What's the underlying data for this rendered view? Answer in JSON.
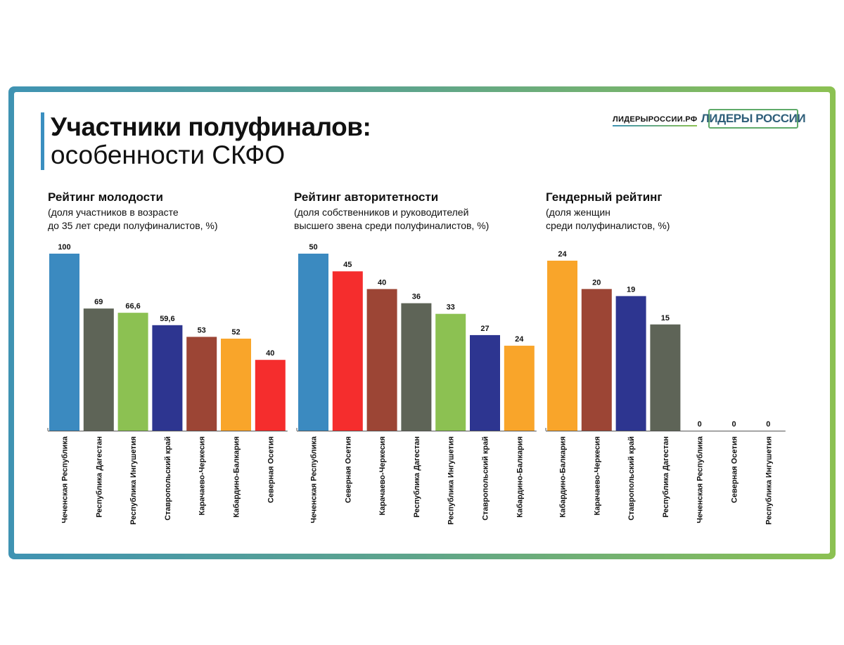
{
  "header": {
    "title_line1": "Участники полуфиналов:",
    "title_line2": "особенности СКФО",
    "site": "ЛИДЕРЫРОССИИ.РФ",
    "logo_text": "ЛИДЕРЫ РОССИИ"
  },
  "region_colors": {
    "Чеченская Республика": "#3b8ac0",
    "Республика Дагестан": "#5e6457",
    "Республика Ингушетия": "#8cc152",
    "Ставропольский край": "#2d3590",
    "Карачаево-Черкесия": "#9c4535",
    "Кабардино-Балкария": "#f9a52a",
    "Северная Осетия": "#f52d2d"
  },
  "chart_data": [
    {
      "type": "bar",
      "title": "Рейтинг молодости",
      "subtitle_line1": "(доля участников в возрасте",
      "subtitle_line2": "до 35 лет среди полуфиналистов, %)",
      "categories": [
        "Чеченская Республика",
        "Республика Дагестан",
        "Республика Ингушетия",
        "Ставропольский край",
        "Карачаево-Черкесия",
        "Кабардино-Балкария",
        "Северная Осетия"
      ],
      "values": [
        100,
        69,
        66.6,
        59.6,
        53,
        52,
        40
      ],
      "value_labels": [
        "100",
        "69",
        "66,6",
        "59,6",
        "53",
        "52",
        "40"
      ],
      "ylim": [
        0,
        100
      ]
    },
    {
      "type": "bar",
      "title": "Рейтинг авторитетности",
      "subtitle_line1": "(доля собственников и руководителей",
      "subtitle_line2": "высшего звена среди полуфиналистов, %)",
      "categories": [
        "Чеченская Республика",
        "Северная Осетия",
        "Карачаево-Черкесия",
        "Республика Дагестан",
        "Республика Ингушетия",
        "Ставропольский край",
        "Кабардино-Балкария"
      ],
      "values": [
        50,
        45,
        40,
        36,
        33,
        27,
        24
      ],
      "value_labels": [
        "50",
        "45",
        "40",
        "36",
        "33",
        "27",
        "24"
      ],
      "ylim": [
        0,
        50
      ]
    },
    {
      "type": "bar",
      "title": "Гендерный рейтинг",
      "subtitle_line1": "(доля женщин",
      "subtitle_line2": "среди полуфиналистов, %)",
      "categories": [
        "Кабардино-Балкария",
        "Карачаево-Черкесия",
        "Ставропольский край",
        "Республика Дагестан",
        "Чеченская Республика",
        "Северная Осетия",
        "Республика Ингушетия"
      ],
      "values": [
        24,
        20,
        19,
        15,
        0,
        0,
        0
      ],
      "value_labels": [
        "24",
        "20",
        "19",
        "15",
        "0",
        "0",
        "0"
      ],
      "ylim": [
        0,
        24
      ]
    }
  ]
}
